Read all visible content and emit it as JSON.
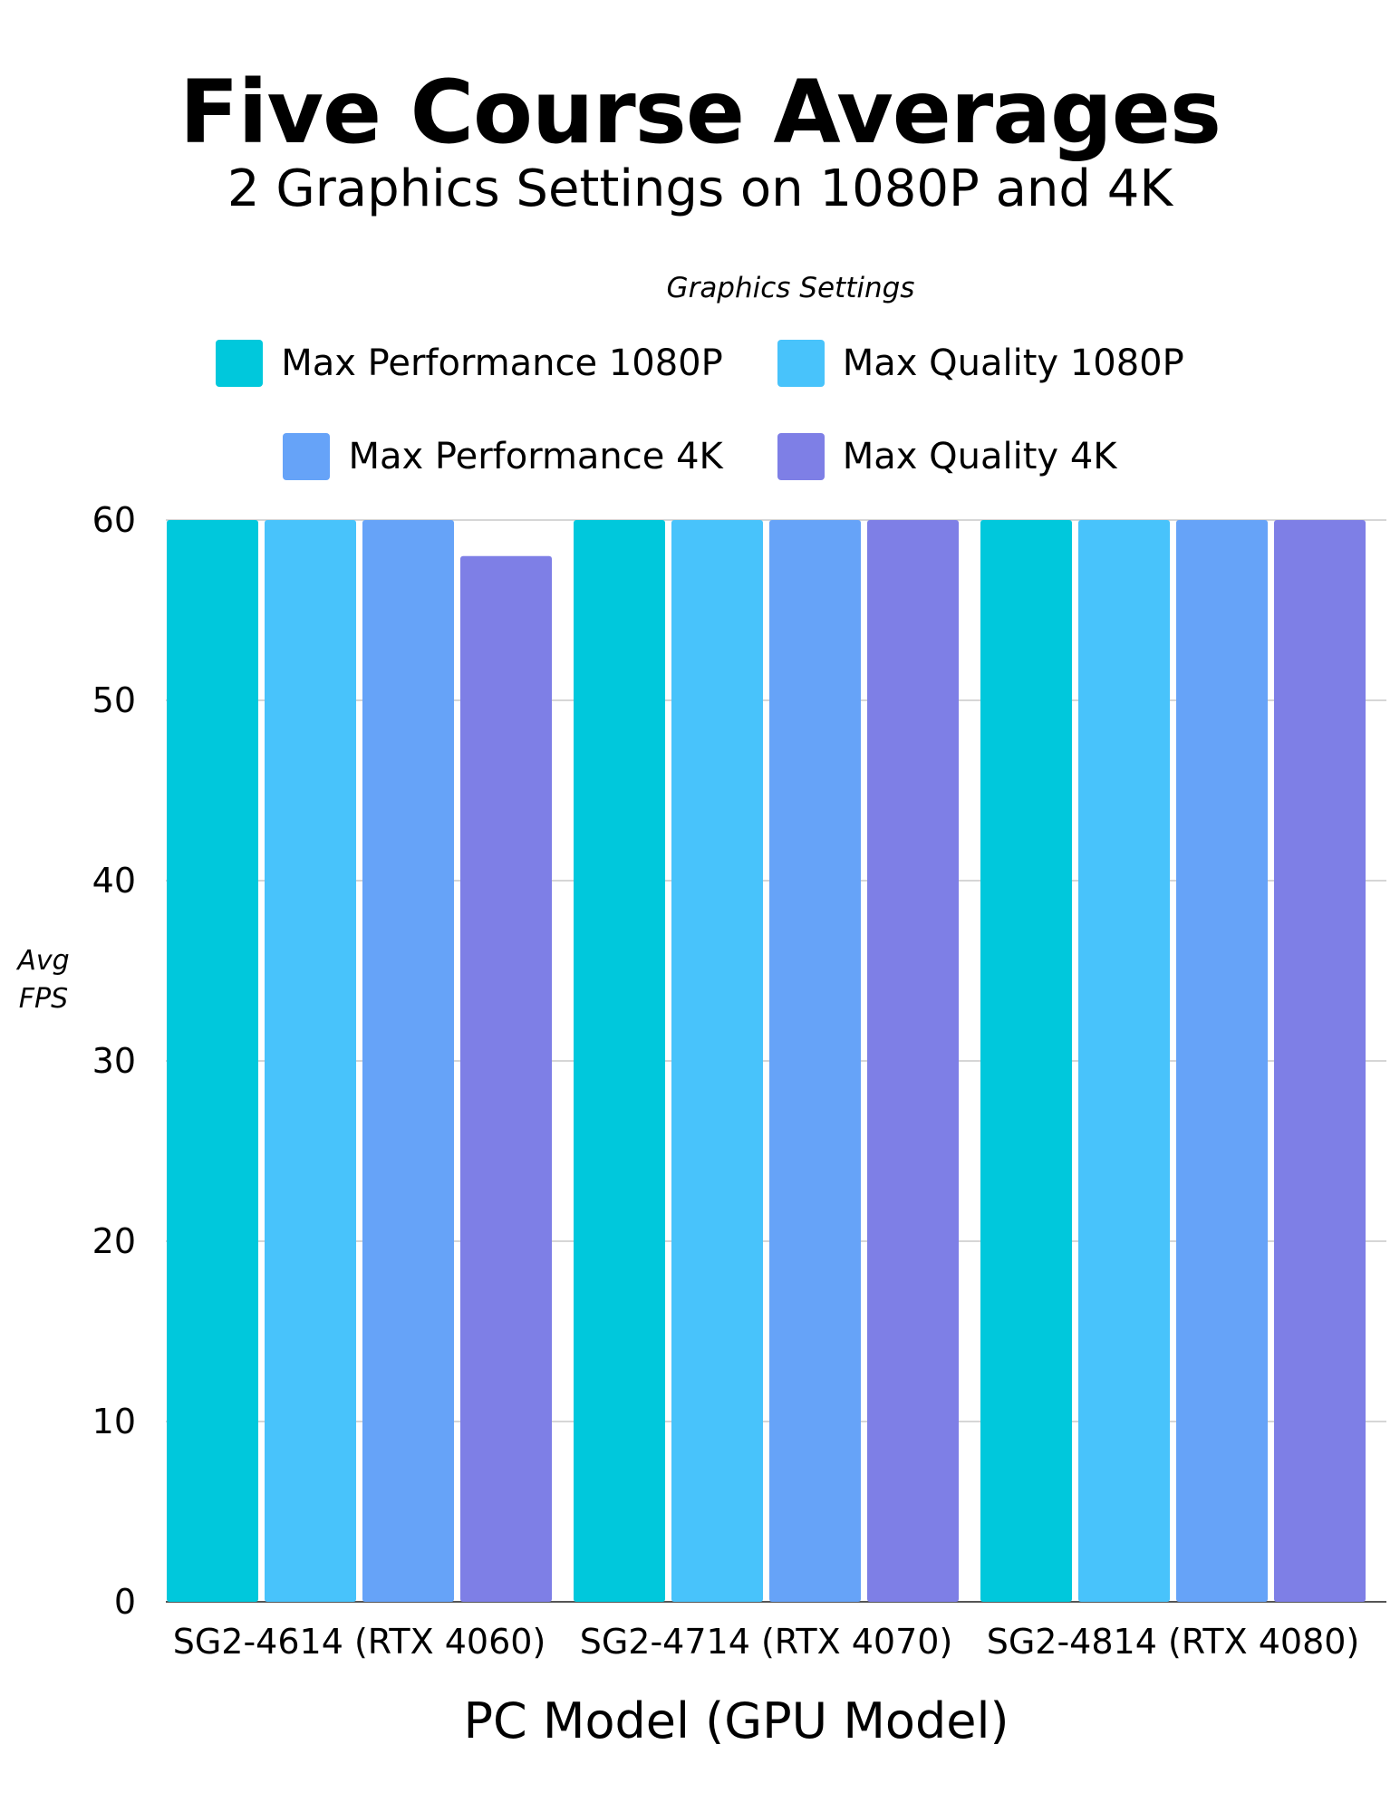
{
  "chart_data": {
    "type": "bar",
    "title": "Five Course Averages",
    "subtitle": "2 Graphics Settings on 1080P and 4K",
    "xlabel": "PC Model (GPU Model)",
    "ylabel_lines": [
      "Avg",
      "FPS"
    ],
    "legend_title": "Graphics Settings",
    "categories": [
      "SG2-4614 (RTX 4060)",
      "SG2-4714 (RTX 4070)",
      "SG2-4814 (RTX 4080)"
    ],
    "series": [
      {
        "name": "Max Performance 1080P",
        "color": "#00c8dc",
        "values": [
          60,
          60,
          60
        ]
      },
      {
        "name": "Max Quality 1080P",
        "color": "#48c3fb",
        "values": [
          60,
          60,
          60
        ]
      },
      {
        "name": "Max Performance 4K",
        "color": "#66a3f8",
        "values": [
          60,
          60,
          60
        ]
      },
      {
        "name": "Max Quality 4K",
        "color": "#7e7fe6",
        "values": [
          58,
          60,
          60
        ]
      }
    ],
    "ylim": [
      0,
      60
    ],
    "yticks": [
      0,
      10,
      20,
      30,
      40,
      50,
      60
    ],
    "grid": true,
    "legend_position": "top"
  }
}
